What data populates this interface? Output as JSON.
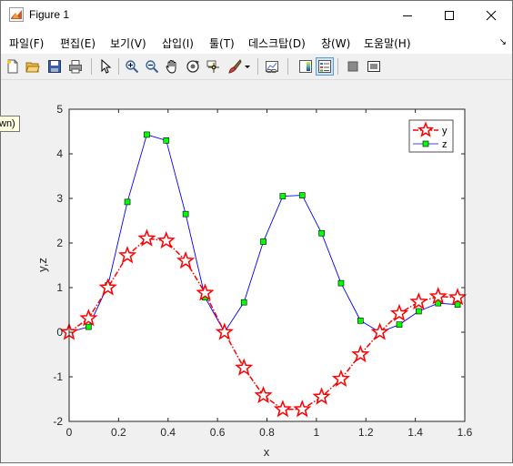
{
  "window": {
    "title": "Figure 1",
    "controls": {
      "minimize": "minimize",
      "maximize": "maximize",
      "close": "close"
    }
  },
  "menubar": {
    "items": [
      "파일(F)",
      "편집(E)",
      "보기(V)",
      "삽입(I)",
      "툴(T)",
      "데스크탑(D)",
      "창(W)",
      "도움말(H)"
    ],
    "overflow_arrow": "↘"
  },
  "toolbar": {
    "icons": [
      "new-figure-icon",
      "open-file-icon",
      "save-icon",
      "print-icon",
      "pointer-icon",
      "zoom-in-icon",
      "zoom-out-icon",
      "pan-hand-icon",
      "rotate-3d-icon",
      "data-cursor-icon",
      "brush-icon",
      "brush-dropdown-icon",
      "link-plot-icon",
      "colorbar-icon",
      "legend-icon",
      "hide-plot-tools-icon",
      "show-plot-tools-icon"
    ],
    "pressed": "legend-icon"
  },
  "tooltip": {
    "text": "wn)"
  },
  "chart_data": {
    "type": "line",
    "xlabel": "x",
    "ylabel": "y,z",
    "xlim": [
      0,
      1.6
    ],
    "ylim": [
      -2,
      5
    ],
    "xticks": [
      "0",
      "0.2",
      "0.4",
      "0.6",
      "0.8",
      "1",
      "1.2",
      "1.4",
      "1.6"
    ],
    "yticks": [
      "-2",
      "-1",
      "0",
      "1",
      "2",
      "3",
      "4",
      "5"
    ],
    "grid": false,
    "legend_position": "top-right",
    "x": [
      0,
      0.0785,
      0.157,
      0.2356,
      0.3142,
      0.3927,
      0.4712,
      0.5498,
      0.6283,
      0.7069,
      0.7854,
      0.8639,
      0.9425,
      1.021,
      1.0996,
      1.1781,
      1.2566,
      1.3352,
      1.4137,
      1.4923,
      1.5708
    ],
    "series": [
      {
        "name": "y",
        "color": "#ff0000",
        "line": "dash-dot",
        "marker": "star",
        "values": [
          0,
          0.31,
          1.0,
          1.72,
          2.1,
          2.05,
          1.6,
          0.88,
          0.0,
          -0.8,
          -1.42,
          -1.73,
          -1.73,
          -1.45,
          -1.05,
          -0.5,
          0.0,
          0.42,
          0.68,
          0.8,
          0.78
        ]
      },
      {
        "name": "z",
        "color": "#0000ff",
        "line": "solid",
        "marker": "square",
        "marker_fill": "#00ff00",
        "values": [
          0,
          0.12,
          1.05,
          2.92,
          4.43,
          4.3,
          2.65,
          0.78,
          0.0,
          0.67,
          2.03,
          3.05,
          3.07,
          2.22,
          1.1,
          0.26,
          0.0,
          0.17,
          0.47,
          0.65,
          0.62
        ]
      }
    ]
  }
}
